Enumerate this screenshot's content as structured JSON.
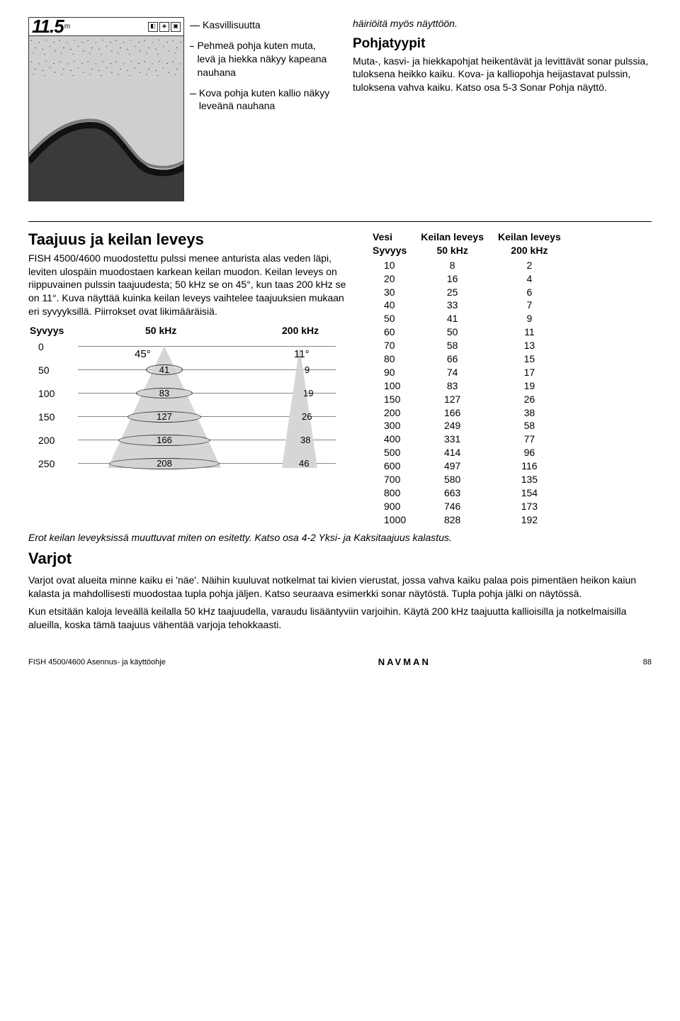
{
  "sonar_display": {
    "depth_value": "11.5",
    "depth_unit": "m",
    "top_icons": [
      "◧",
      "◈",
      "▣"
    ]
  },
  "annotations": {
    "veg": "Kasvillisuutta",
    "soft": "Pehmeä pohja kuten muta, levä ja hiekka näkyy kapeana nauhana",
    "hard": "Kova pohja kuten kallio näkyy leveänä nauhana"
  },
  "right_top": {
    "line1": "häiriöitä myös näyttöön.",
    "heading": "Pohjatyypit",
    "body": "Muta-, kasvi- ja hiekkapohjat heikentävät ja levittävät sonar pulssia, tuloksena heikko kaiku. Kova- ja kalliopohja heijastavat pulssin, tuloksena vahva kaiku. Katso osa 5-3 Sonar Pohja näyttö."
  },
  "freq_section": {
    "heading": "Taajuus ja keilan leveys",
    "body": "FISH 4500/4600 muodostettu pulssi menee anturista alas veden läpi, leviten ulospäin muodostaen karkean keilan muodon. Keilan leveys on riippuvainen pulssin taajuudesta; 50 kHz se on 45°, kun taas 200 kHz se on 11°. Kuva näyttää kuinka keilan leveys vaihtelee taajuuksien mukaan eri syvyyksillä. Piirrokset ovat likimääräisiä."
  },
  "beam_diagram": {
    "col_depth": "Syvyys",
    "col_50": "50 kHz",
    "col_200": "200 kHz",
    "angle_50": "45°",
    "angle_200": "11°",
    "depth_ticks": [
      "0",
      "50",
      "100",
      "150",
      "200",
      "250"
    ],
    "left_ellipse_vals": [
      "41",
      "83",
      "127",
      "166",
      "208"
    ],
    "right_vals": [
      "9",
      "19",
      "26",
      "38",
      "46"
    ],
    "cone_fill": "#d6d6d6",
    "grid_color": "#888888"
  },
  "beam_table": {
    "h1": "Vesi",
    "h1b": "Syvyys",
    "h2": "Keilan leveys",
    "h2b": "50 kHz",
    "h3": "Keilan leveys",
    "h3b": "200 kHz",
    "rows": [
      [
        "10",
        "8",
        "2"
      ],
      [
        "20",
        "16",
        "4"
      ],
      [
        "30",
        "25",
        "6"
      ],
      [
        "40",
        "33",
        "7"
      ],
      [
        "50",
        "41",
        "9"
      ],
      [
        "60",
        "50",
        "11"
      ],
      [
        "70",
        "58",
        "13"
      ],
      [
        "80",
        "66",
        "15"
      ],
      [
        "90",
        "74",
        "17"
      ],
      [
        "100",
        "83",
        "19"
      ],
      [
        "150",
        "127",
        "26"
      ],
      [
        "200",
        "166",
        "38"
      ],
      [
        "300",
        "249",
        "58"
      ],
      [
        "400",
        "331",
        "77"
      ],
      [
        "500",
        "414",
        "96"
      ],
      [
        "600",
        "497",
        "116"
      ],
      [
        "700",
        "580",
        "135"
      ],
      [
        "800",
        "663",
        "154"
      ],
      [
        "900",
        "746",
        "173"
      ],
      [
        "1000",
        "828",
        "192"
      ]
    ]
  },
  "below": {
    "erot": "Erot keilan leveyksissä muuttuvat miten on esitetty. Katso osa 4-2 Yksi- ja Kaksitaajuus kalastus.",
    "varjot_h": "Varjot",
    "varjot_1": "Varjot ovat alueita minne kaiku ei 'näe'. Näihin kuuluvat notkelmat tai kivien vierustat, jossa vahva kaiku palaa pois pimentäen heikon kaiun kalasta ja mahdollisesti muodostaa tupla pohja jäljen. Katso seuraava esimerkki sonar näytöstä. Tupla pohja jälki on näytössä.",
    "varjot_2": "Kun etsitään kaloja leveällä keilalla 50 kHz taajuudella, varaudu lisääntyviin varjoihin. Käytä 200 kHz taajuutta kallioisilla ja notkelmaisilla alueilla, koska tämä taajuus vähentää varjoja tehokkaasti."
  },
  "footer": {
    "left": "FISH 4500/4600 Asennus- ja käyttöohje",
    "brand": "NAVMAN",
    "page": "88"
  }
}
